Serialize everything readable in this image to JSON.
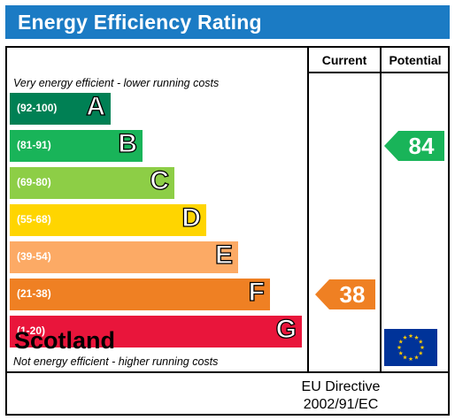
{
  "title": "Energy Efficiency Rating",
  "columns": {
    "current": "Current",
    "potential": "Potential"
  },
  "notes": {
    "top": "Very energy efficient - lower running costs",
    "bottom": "Not energy efficient - higher running costs"
  },
  "footer": {
    "region": "Scotland",
    "directive_line1": "EU Directive",
    "directive_line2": "2002/91/EC"
  },
  "colors": {
    "header": "#1b7bc4",
    "A": "#008054",
    "B": "#19b459",
    "C": "#8dce46",
    "D": "#ffd500",
    "E": "#fcaa65",
    "F": "#ef8023",
    "G": "#e9153b",
    "eu_flag": "#003399",
    "eu_star": "#ffcc00"
  },
  "chart_data": {
    "type": "bar",
    "categories": [
      "A",
      "B",
      "C",
      "D",
      "E",
      "F",
      "G"
    ],
    "ranges": [
      "(92-100)",
      "(81-91)",
      "(69-80)",
      "(55-68)",
      "(39-54)",
      "(21-38)",
      "(1-20)"
    ],
    "current": {
      "value": 38,
      "band": "F"
    },
    "potential": {
      "value": 84,
      "band": "B"
    }
  }
}
